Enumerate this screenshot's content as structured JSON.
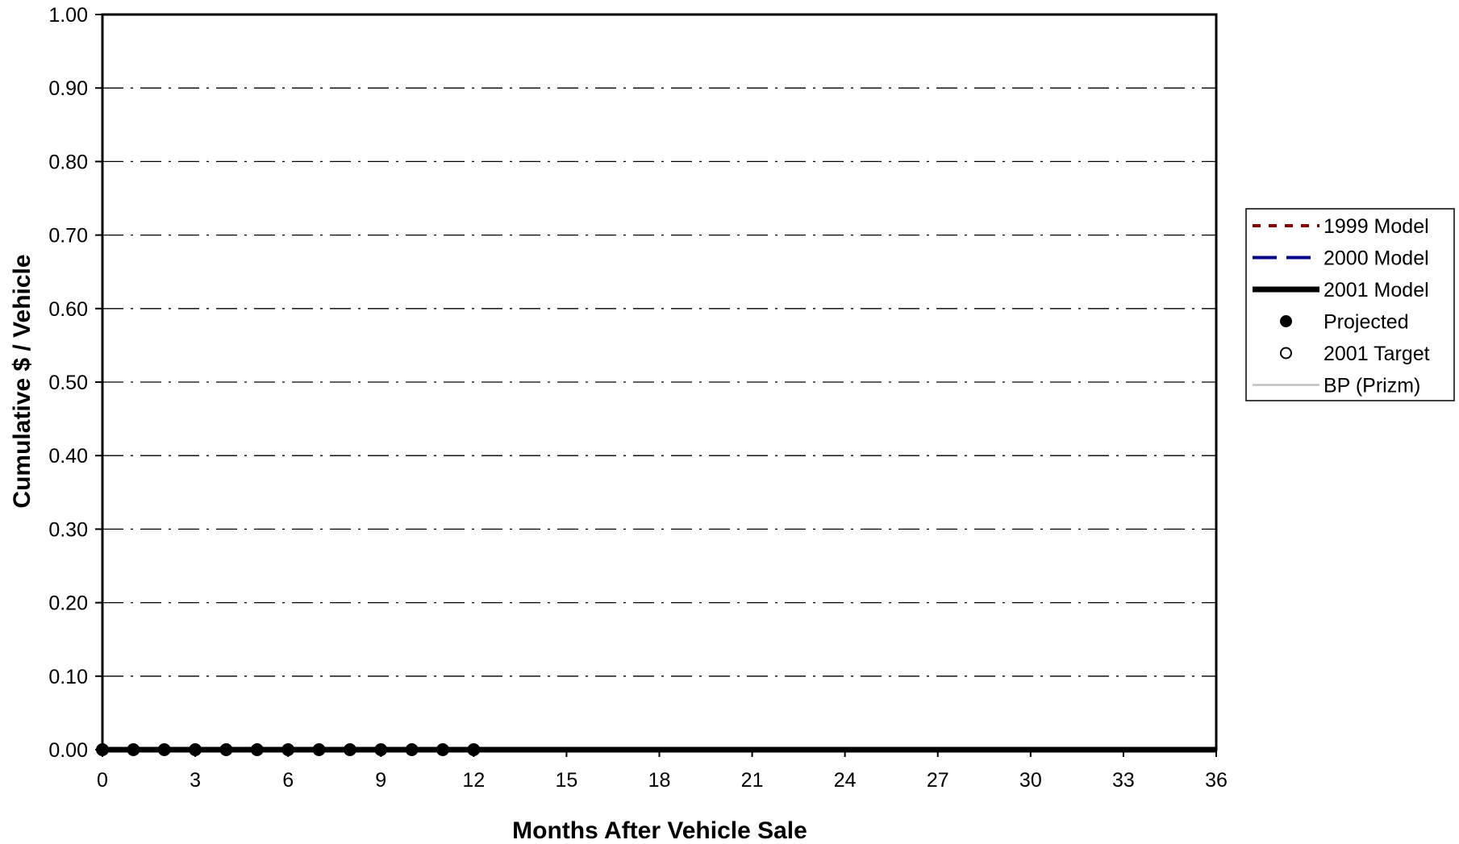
{
  "chart_data": {
    "type": "line",
    "title": "",
    "xlabel": "Months After Vehicle Sale",
    "ylabel": "Cumulative $ / Vehicle",
    "xlim": [
      0,
      36
    ],
    "ylim": [
      0,
      1.0
    ],
    "x_ticks": [
      "0",
      "3",
      "6",
      "9",
      "12",
      "15",
      "18",
      "21",
      "24",
      "27",
      "30",
      "33",
      "36"
    ],
    "y_ticks": [
      "0.00",
      "0.10",
      "0.20",
      "0.30",
      "0.40",
      "0.50",
      "0.60",
      "0.70",
      "0.80",
      "0.90",
      "1.00"
    ],
    "grid": "horizontal dash-dot",
    "legend_position": "right",
    "series": [
      {
        "name": "1999 Model",
        "color": "#8b0000",
        "style": "dotted",
        "x": [],
        "y": []
      },
      {
        "name": "2000 Model",
        "color": "#00008b",
        "style": "dashed",
        "x": [],
        "y": []
      },
      {
        "name": "2001 Model",
        "color": "#000000",
        "style": "solid-thick",
        "x": [
          0,
          36
        ],
        "y": [
          0,
          0
        ]
      },
      {
        "name": "Projected",
        "color": "#000000",
        "style": "filled-marker",
        "x": [
          0,
          1,
          2,
          3,
          4,
          5,
          6,
          7,
          8,
          9,
          10,
          11,
          12
        ],
        "y": [
          0,
          0,
          0,
          0,
          0,
          0,
          0,
          0,
          0,
          0,
          0,
          0,
          0
        ]
      },
      {
        "name": "2001 Target",
        "color": "#000000",
        "style": "open-marker",
        "x": [],
        "y": []
      },
      {
        "name": "BP (Prizm)",
        "color": "#c0c0c0",
        "style": "solid-thin",
        "x": [],
        "y": []
      }
    ]
  }
}
